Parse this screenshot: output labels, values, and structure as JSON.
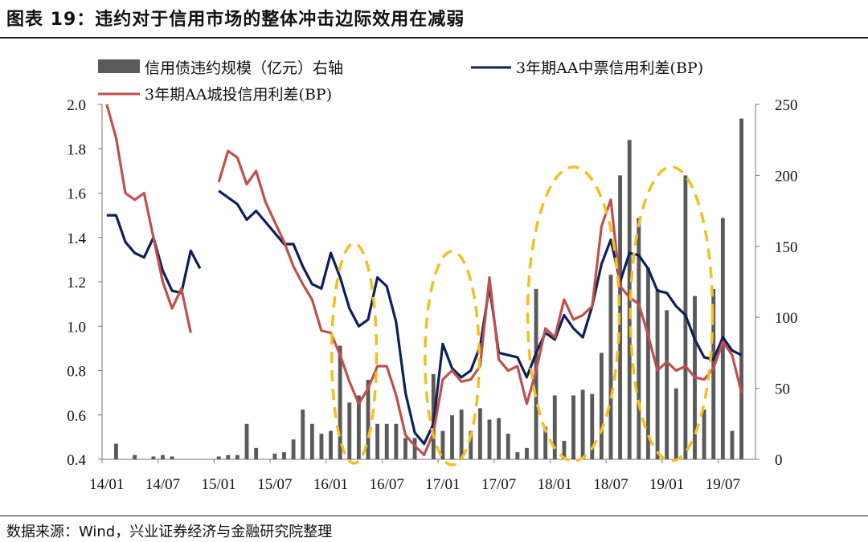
{
  "header": {
    "title": "图表 19：违约对于信用市场的整体冲击边际效用在减弱"
  },
  "footer": {
    "source": "数据来源：Wind，兴业证券经济与金融研究院整理"
  },
  "colors": {
    "bars": "#5a5a5a",
    "zhongpiao": "#0d1f5c",
    "chengtou": "#c0504d",
    "ellipses": "#f2c01e"
  },
  "legend": {
    "bars": "信用债违约规模（亿元）右轴",
    "zhongpiao": "3年期AA中票信用利差(BP)",
    "chengtou": "3年期AA城投信用利差(BP)"
  },
  "chart_data": {
    "type": "bar+line",
    "x": [
      "14/01",
      "14/02",
      "14/03",
      "14/04",
      "14/05",
      "14/06",
      "14/07",
      "14/08",
      "14/09",
      "14/10",
      "14/11",
      "14/12",
      "15/01",
      "15/02",
      "15/03",
      "15/04",
      "15/05",
      "15/06",
      "15/07",
      "15/08",
      "15/09",
      "15/10",
      "15/11",
      "15/12",
      "16/01",
      "16/02",
      "16/03",
      "16/04",
      "16/05",
      "16/06",
      "16/07",
      "16/08",
      "16/09",
      "16/10",
      "16/11",
      "16/12",
      "17/01",
      "17/02",
      "17/03",
      "17/04",
      "17/05",
      "17/06",
      "17/07",
      "17/08",
      "17/09",
      "17/10",
      "17/11",
      "17/12",
      "18/01",
      "18/02",
      "18/03",
      "18/04",
      "18/05",
      "18/06",
      "18/07",
      "18/08",
      "18/09",
      "18/10",
      "18/11",
      "18/12",
      "19/01",
      "19/02",
      "19/03",
      "19/04",
      "19/05",
      "19/06",
      "19/07",
      "19/08",
      "19/09",
      "19/10"
    ],
    "x_tick_labels": [
      "14/01",
      "14/07",
      "15/01",
      "15/07",
      "16/01",
      "16/07",
      "17/01",
      "17/07",
      "18/01",
      "18/07",
      "19/01",
      "19/07"
    ],
    "y_left": {
      "ticks": [
        "0.4",
        "0.6",
        "0.8",
        "1.0",
        "1.2",
        "1.4",
        "1.6",
        "1.8",
        "2.0"
      ],
      "ylim": [
        0.4,
        2.0
      ]
    },
    "y_right": {
      "ticks": [
        "0",
        "50",
        "100",
        "150",
        "200",
        "250"
      ],
      "ylim": [
        0,
        250
      ]
    },
    "series": [
      {
        "name": "信用债违约规模（亿元）右轴",
        "type": "bar",
        "axis": "right",
        "values": [
          0,
          11,
          0,
          3,
          0,
          2,
          3,
          2,
          0,
          0,
          0,
          0,
          2,
          3,
          3,
          25,
          8,
          0,
          4,
          5,
          14,
          35,
          25,
          18,
          20,
          80,
          40,
          45,
          56,
          25,
          25,
          25,
          15,
          15,
          0,
          60,
          20,
          31,
          35,
          20,
          36,
          28,
          29,
          18,
          5,
          8,
          120,
          23,
          45,
          13,
          45,
          49,
          46,
          75,
          130,
          200,
          225,
          170,
          135,
          120,
          105,
          50,
          200,
          115,
          35,
          120,
          170,
          20,
          240,
          0
        ],
        "highlight_dates": [
          "16/03",
          "17/02",
          "18/04",
          "19/02"
        ]
      },
      {
        "name": "3年期AA中票信用利差(BP)",
        "type": "line",
        "axis": "left",
        "values": [
          1.5,
          1.5,
          1.38,
          1.33,
          1.31,
          1.4,
          1.25,
          1.16,
          1.15,
          1.34,
          1.26,
          null,
          1.61,
          1.58,
          1.55,
          1.48,
          1.52,
          1.47,
          1.42,
          1.37,
          1.37,
          1.27,
          1.19,
          1.17,
          1.33,
          1.22,
          1.08,
          1.0,
          1.03,
          1.22,
          1.18,
          1.02,
          0.7,
          0.52,
          0.47,
          0.56,
          0.92,
          0.81,
          0.77,
          0.8,
          0.91,
          1.18,
          0.88,
          0.87,
          0.86,
          0.77,
          0.88,
          0.97,
          0.94,
          1.05,
          0.99,
          0.95,
          1.09,
          1.28,
          1.39,
          1.2,
          1.33,
          1.32,
          1.26,
          1.16,
          1.15,
          1.09,
          1.05,
          0.94,
          0.86,
          0.85,
          0.95,
          0.89,
          0.87,
          null
        ]
      },
      {
        "name": "3年期AA城投信用利差(BP)",
        "type": "line",
        "axis": "left",
        "values": [
          2.05,
          1.85,
          1.6,
          1.57,
          1.6,
          1.4,
          1.2,
          1.08,
          1.17,
          0.97,
          null,
          null,
          1.65,
          1.79,
          1.76,
          1.64,
          1.7,
          1.56,
          1.47,
          1.38,
          1.27,
          1.19,
          1.12,
          0.98,
          0.97,
          0.87,
          0.75,
          0.65,
          0.72,
          0.82,
          0.82,
          0.69,
          0.51,
          0.46,
          0.42,
          0.52,
          0.76,
          0.8,
          0.75,
          0.76,
          0.82,
          1.22,
          0.85,
          0.8,
          0.82,
          0.65,
          0.8,
          0.99,
          0.95,
          1.12,
          1.03,
          1.05,
          1.09,
          1.45,
          1.57,
          1.18,
          1.13,
          1.1,
          0.96,
          0.8,
          0.84,
          0.8,
          0.82,
          0.77,
          0.76,
          0.81,
          0.93,
          0.87,
          0.7,
          null
        ]
      }
    ],
    "highlight_ellipses": [
      {
        "from": "16/02",
        "to": "16/05"
      },
      {
        "from": "16/12",
        "to": "17/04"
      },
      {
        "from": "17/11",
        "to": "18/07"
      },
      {
        "from": "18/10",
        "to": "19/05"
      }
    ]
  }
}
